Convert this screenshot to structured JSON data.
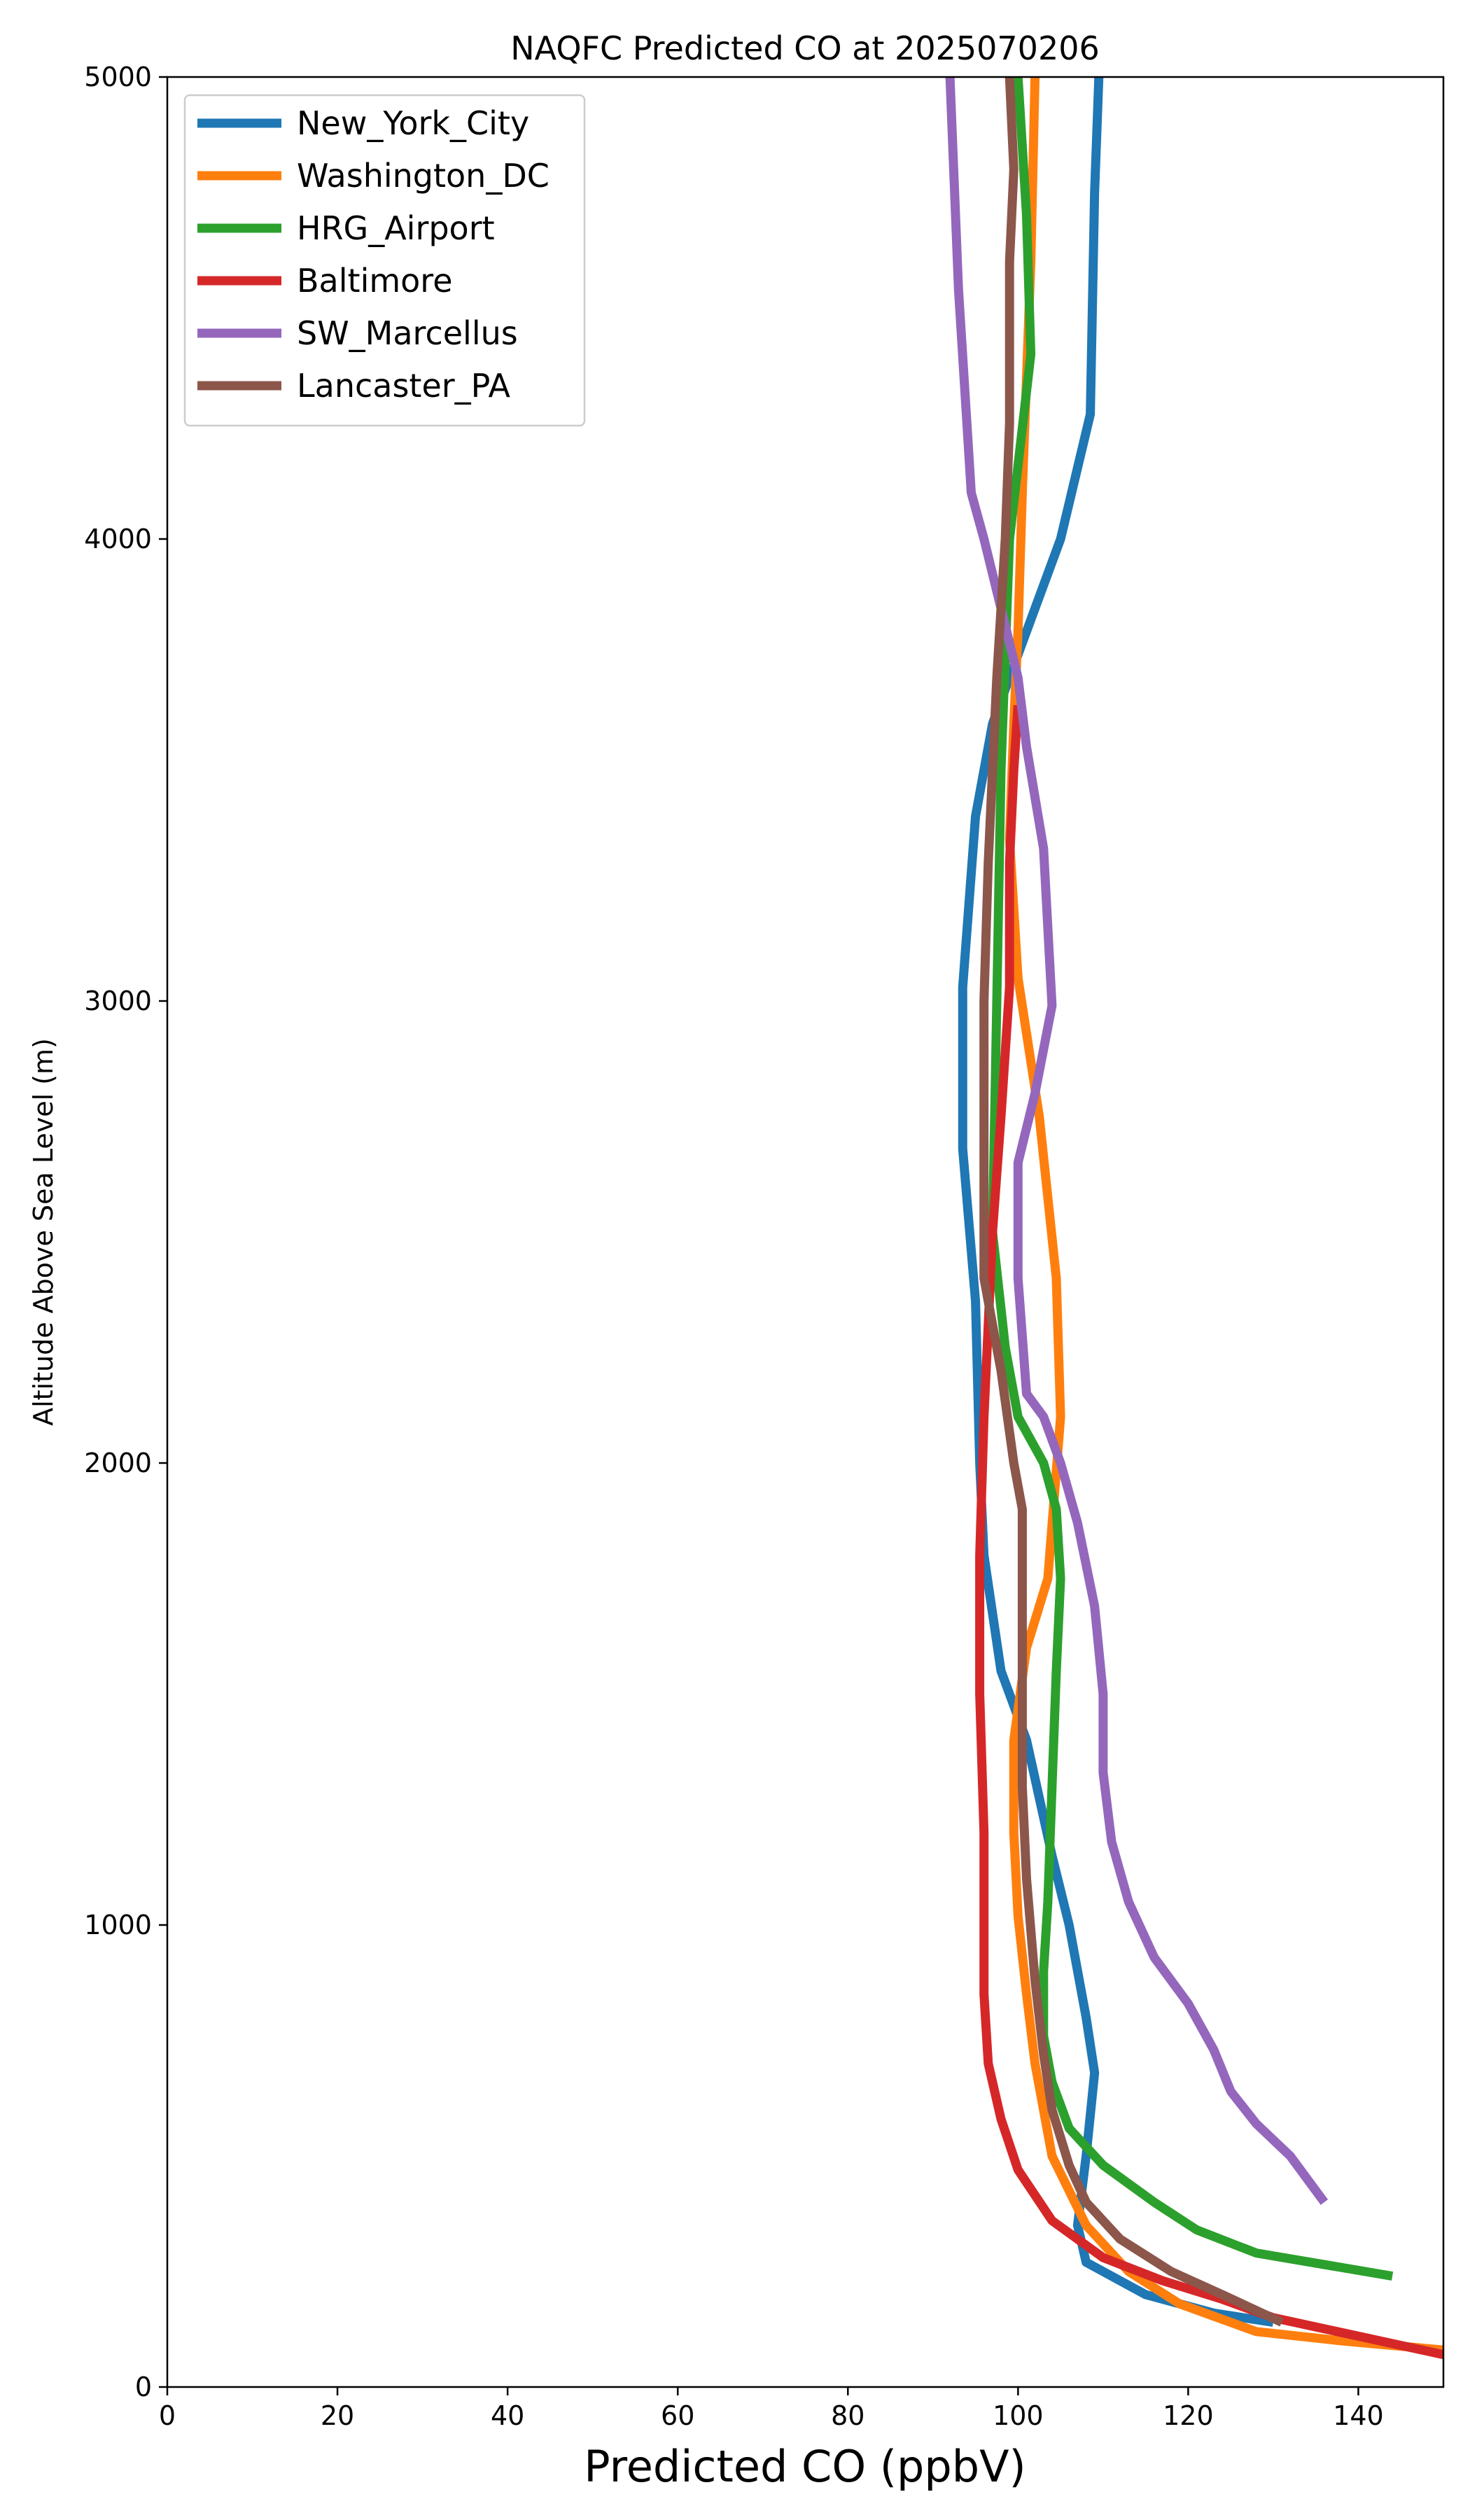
{
  "chart_data": {
    "type": "line",
    "title": "NAQFC Predicted CO at 2025070206",
    "xlabel": "Predicted CO (ppbV)",
    "ylabel": "Altitude Above Sea Level (m)",
    "xlim": [
      0,
      150
    ],
    "ylim": [
      0,
      5000
    ],
    "xticks": [
      0,
      20,
      40,
      60,
      80,
      100,
      120,
      140
    ],
    "yticks": [
      0,
      1000,
      2000,
      3000,
      4000,
      5000
    ],
    "grid": false,
    "legend_position": "top-left",
    "series": [
      {
        "name": "New_York_City",
        "color": "#1f77b4",
        "points": [
          [
            130,
            140
          ],
          [
            123,
            160
          ],
          [
            115,
            200
          ],
          [
            108,
            270
          ],
          [
            107,
            350
          ],
          [
            108,
            500
          ],
          [
            109,
            680
          ],
          [
            108,
            800
          ],
          [
            106,
            1000
          ],
          [
            104,
            1150
          ],
          [
            101,
            1400
          ],
          [
            98,
            1550
          ],
          [
            96,
            1800
          ],
          [
            95.5,
            2000
          ],
          [
            95,
            2350
          ],
          [
            93.5,
            2680
          ],
          [
            93.5,
            3030
          ],
          [
            95,
            3400
          ],
          [
            97,
            3600
          ],
          [
            101,
            3800
          ],
          [
            105,
            4000
          ],
          [
            108.5,
            4270
          ],
          [
            109,
            4750
          ],
          [
            109.5,
            5000
          ]
        ]
      },
      {
        "name": "Washington_DC",
        "color": "#ff7f0e",
        "points": [
          [
            150,
            80
          ],
          [
            138,
            100
          ],
          [
            128,
            120
          ],
          [
            119,
            180
          ],
          [
            113,
            250
          ],
          [
            108,
            350
          ],
          [
            104,
            500
          ],
          [
            102,
            700
          ],
          [
            101,
            850
          ],
          [
            100,
            1020
          ],
          [
            99.5,
            1200
          ],
          [
            99.5,
            1400
          ],
          [
            101,
            1600
          ],
          [
            103.5,
            1750
          ],
          [
            105,
            2100
          ],
          [
            104.5,
            2400
          ],
          [
            102.5,
            2750
          ],
          [
            100,
            3050
          ],
          [
            99,
            3350
          ],
          [
            99.5,
            3600
          ],
          [
            100,
            3800
          ],
          [
            100.5,
            4100
          ],
          [
            101.5,
            4600
          ],
          [
            102,
            5000
          ]
        ]
      },
      {
        "name": "HRG_Airport",
        "color": "#2ca02c",
        "points": [
          [
            144,
            240
          ],
          [
            128,
            290
          ],
          [
            121,
            340
          ],
          [
            116,
            400
          ],
          [
            110,
            480
          ],
          [
            106,
            560
          ],
          [
            104,
            660
          ],
          [
            103,
            760
          ],
          [
            103,
            900
          ],
          [
            103.5,
            1050
          ],
          [
            104,
            1300
          ],
          [
            104.5,
            1550
          ],
          [
            105,
            1750
          ],
          [
            104.5,
            1900
          ],
          [
            103,
            2000
          ],
          [
            100,
            2100
          ],
          [
            98.5,
            2250
          ],
          [
            97,
            2500
          ],
          [
            97.5,
            3000
          ],
          [
            98,
            3500
          ],
          [
            99,
            4000
          ],
          [
            101.5,
            4400
          ],
          [
            101,
            4700
          ],
          [
            100,
            5000
          ]
        ]
      },
      {
        "name": "Baltimore",
        "color": "#d62728",
        "points": [
          [
            150,
            70
          ],
          [
            140,
            110
          ],
          [
            130,
            150
          ],
          [
            124,
            190
          ],
          [
            117,
            230
          ],
          [
            110,
            280
          ],
          [
            104,
            360
          ],
          [
            100,
            470
          ],
          [
            98,
            580
          ],
          [
            96.5,
            700
          ],
          [
            96,
            850
          ],
          [
            96,
            1000
          ],
          [
            96,
            1200
          ],
          [
            95.5,
            1500
          ],
          [
            95.5,
            1800
          ],
          [
            96,
            2100
          ],
          [
            96.5,
            2300
          ],
          [
            97,
            2500
          ],
          [
            98,
            2750
          ],
          [
            99,
            3030
          ],
          [
            99,
            3300
          ],
          [
            99.5,
            3500
          ],
          [
            100,
            3640
          ]
        ]
      },
      {
        "name": "SW_Marcellus",
        "color": "#9467bd",
        "points": [
          [
            136,
            400
          ],
          [
            132,
            500
          ],
          [
            128,
            570
          ],
          [
            125,
            640
          ],
          [
            123,
            730
          ],
          [
            120,
            830
          ],
          [
            116,
            930
          ],
          [
            113,
            1050
          ],
          [
            111,
            1180
          ],
          [
            110,
            1330
          ],
          [
            110,
            1500
          ],
          [
            109,
            1690
          ],
          [
            107,
            1870
          ],
          [
            105,
            2000
          ],
          [
            103,
            2100
          ],
          [
            101,
            2150
          ],
          [
            100,
            2400
          ],
          [
            100,
            2650
          ],
          [
            102,
            2800
          ],
          [
            104,
            2990
          ],
          [
            103,
            3330
          ],
          [
            101,
            3550
          ],
          [
            100,
            3700
          ],
          [
            98,
            3850
          ],
          [
            96,
            4000
          ],
          [
            94.5,
            4100
          ],
          [
            93,
            4540
          ],
          [
            92,
            5000
          ]
        ]
      },
      {
        "name": "Lancaster_PA",
        "color": "#8c564b",
        "points": [
          [
            131,
            140
          ],
          [
            124,
            200
          ],
          [
            118,
            250
          ],
          [
            112,
            320
          ],
          [
            108,
            400
          ],
          [
            106,
            480
          ],
          [
            104,
            600
          ],
          [
            103,
            720
          ],
          [
            102,
            880
          ],
          [
            101,
            1100
          ],
          [
            100.5,
            1300
          ],
          [
            100.5,
            1600
          ],
          [
            100.5,
            1900
          ],
          [
            99.5,
            2000
          ],
          [
            98,
            2200
          ],
          [
            96,
            2400
          ],
          [
            96,
            2700
          ],
          [
            96,
            3000
          ],
          [
            96.5,
            3300
          ],
          [
            97,
            3500
          ],
          [
            97.5,
            3700
          ],
          [
            98.5,
            4000
          ],
          [
            99,
            4250
          ],
          [
            99,
            4600
          ],
          [
            99.5,
            4800
          ],
          [
            99,
            5000
          ]
        ]
      }
    ]
  }
}
